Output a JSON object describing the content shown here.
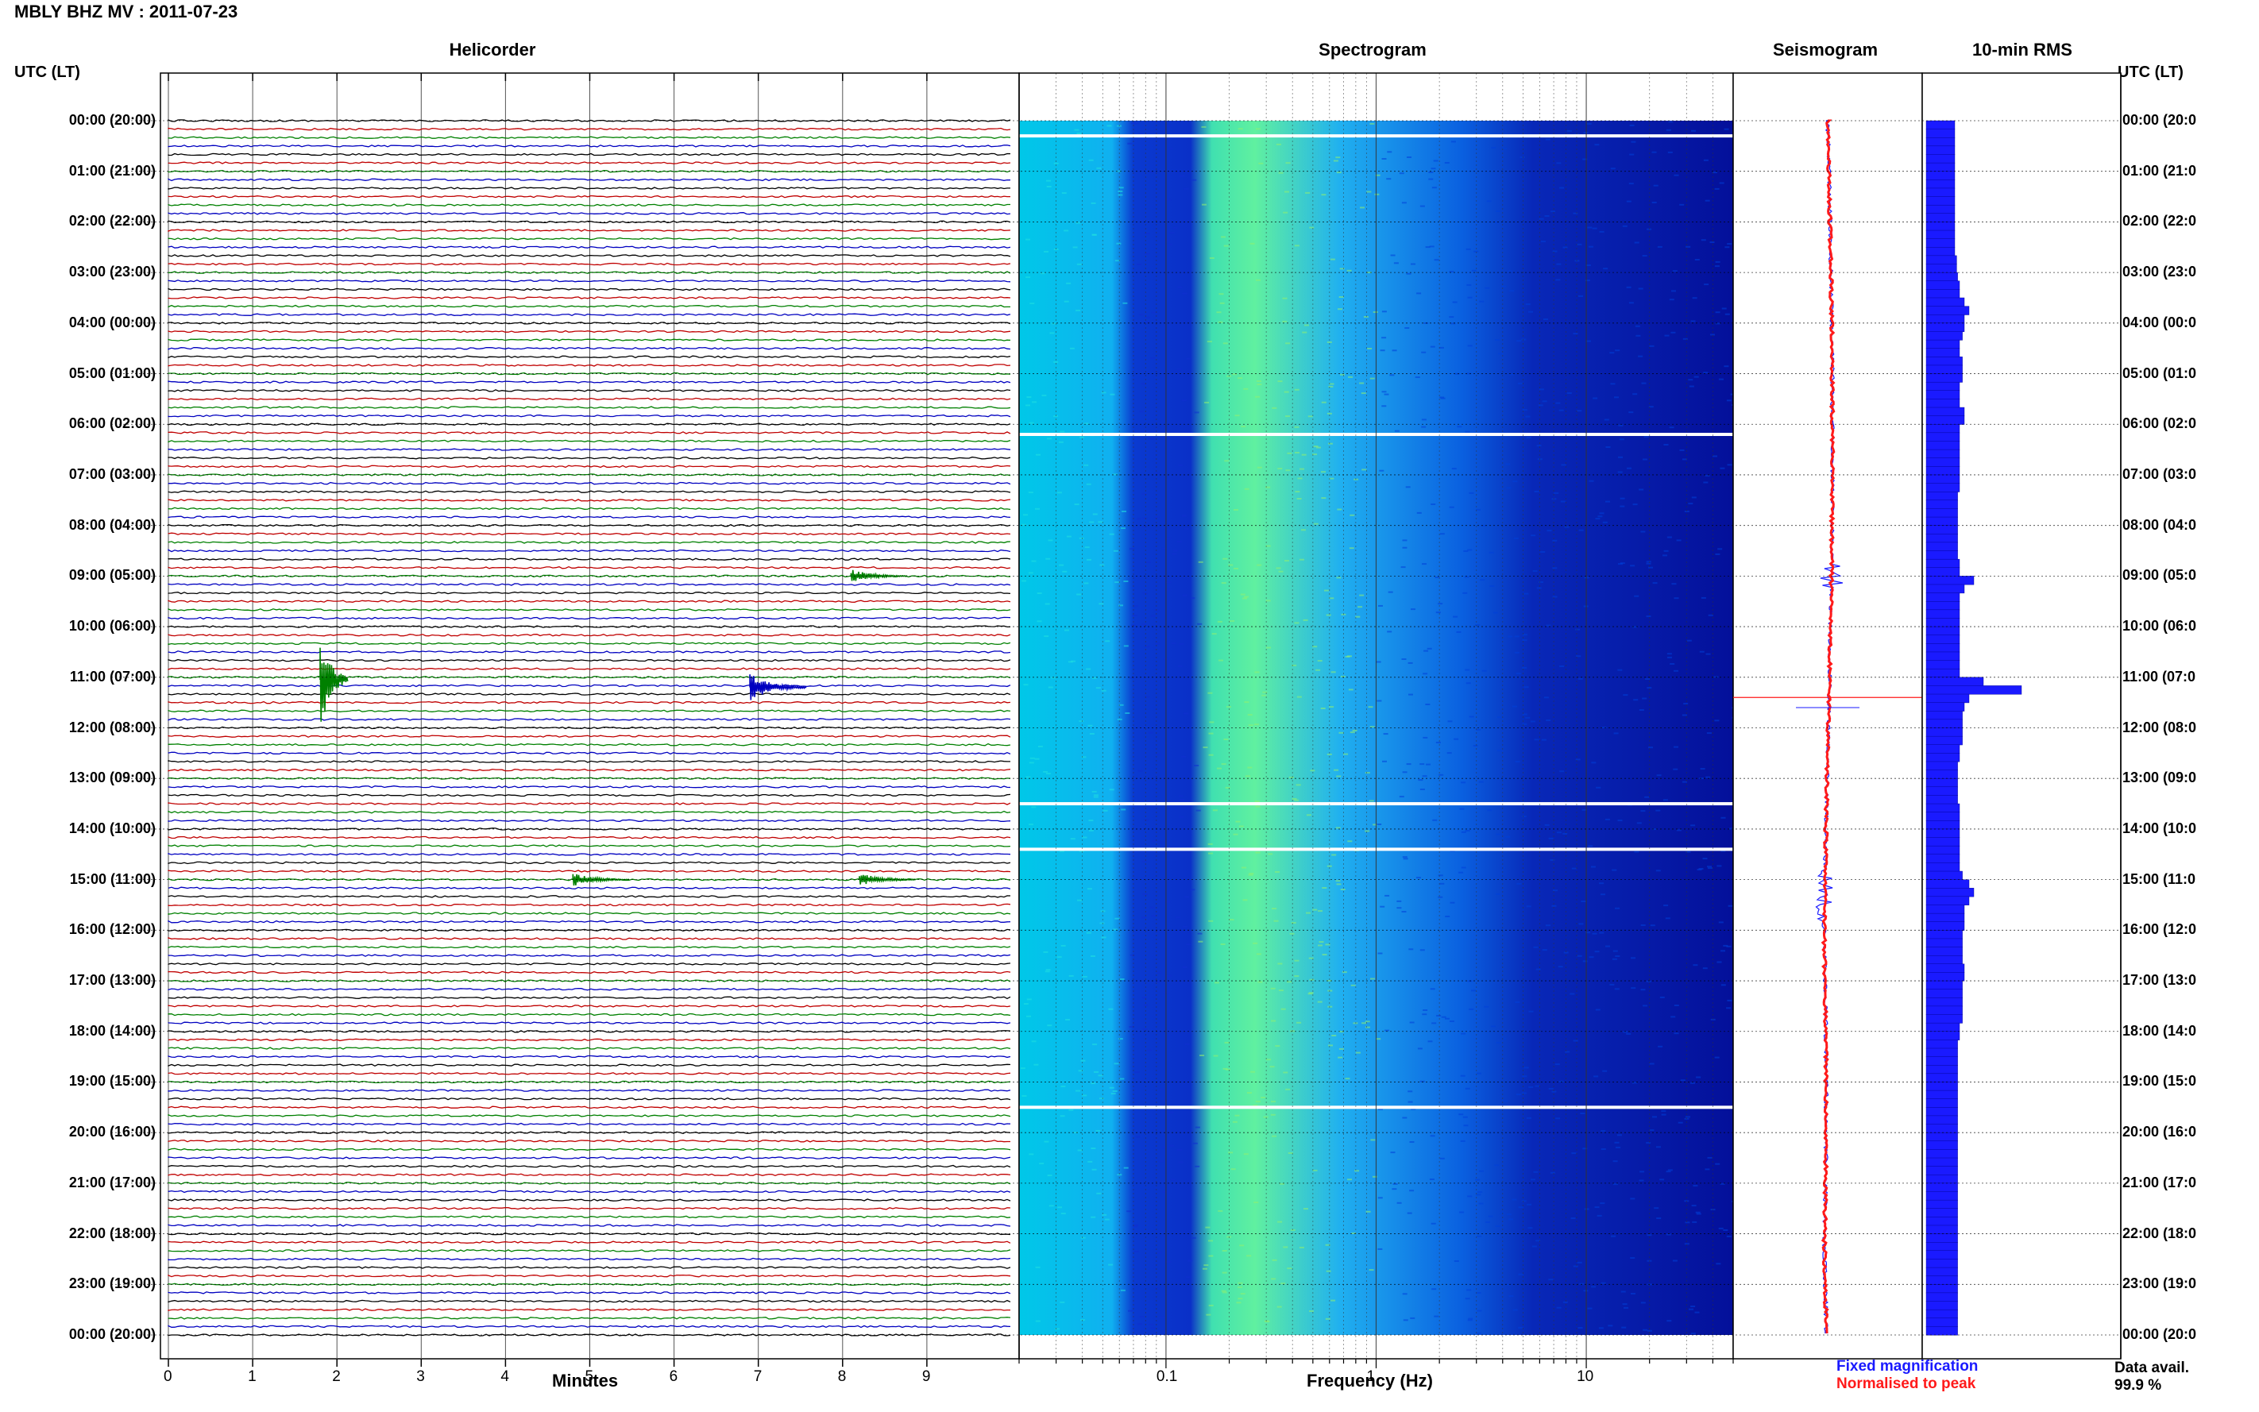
{
  "header": {
    "station_title": "MBLY BHZ MV : 2011-07-23",
    "utc_lt_label_left": "UTC (LT)",
    "utc_lt_label_right": "UTC (LT)"
  },
  "panels": {
    "helicorder": "Helicorder",
    "spectrogram": "Spectrogram",
    "seismogram": "Seismogram",
    "rms": "10-min RMS"
  },
  "time_labels": [
    "00:00 (20:00)",
    "01:00 (21:00)",
    "02:00 (22:00)",
    "03:00 (23:00)",
    "04:00 (00:00)",
    "05:00 (01:00)",
    "06:00 (02:00)",
    "07:00 (03:00)",
    "08:00 (04:00)",
    "09:00 (05:00)",
    "10:00 (06:00)",
    "11:00 (07:00)",
    "12:00 (08:00)",
    "13:00 (09:00)",
    "14:00 (10:00)",
    "15:00 (11:00)",
    "16:00 (12:00)",
    "17:00 (13:00)",
    "18:00 (14:00)",
    "19:00 (15:00)",
    "20:00 (16:00)",
    "21:00 (17:00)",
    "22:00 (18:00)",
    "23:00 (19:00)",
    "00:00 (20:00)"
  ],
  "time_labels_right": [
    "00:00 (20:0",
    "01:00 (21:0",
    "02:00 (22:0",
    "03:00 (23:0",
    "04:00 (00:0",
    "05:00 (01:0",
    "06:00 (02:0",
    "07:00 (03:0",
    "08:00 (04:0",
    "09:00 (05:0",
    "10:00 (06:0",
    "11:00 (07:0",
    "12:00 (08:0",
    "13:00 (09:0",
    "14:00 (10:0",
    "15:00 (11:0",
    "16:00 (12:0",
    "17:00 (13:0",
    "18:00 (14:0",
    "19:00 (15:0",
    "20:00 (16:0",
    "21:00 (17:0",
    "22:00 (18:0",
    "23:00 (19:0",
    "00:00 (20:0"
  ],
  "helicorder_axis": {
    "ticks": [
      "0",
      "1",
      "2",
      "3",
      "4",
      "5",
      "6",
      "7",
      "8",
      "9"
    ],
    "title": "Minutes"
  },
  "spectrogram_axis": {
    "ticks": [
      "0.1",
      "1",
      "10"
    ],
    "title": "Frequency (Hz)"
  },
  "legend": {
    "fixed": "Fixed magnification",
    "normalised": "Normalised to peak",
    "fixed_color": "#1a1aff",
    "normalised_color": "#ff1a1a"
  },
  "data_avail": {
    "label": "Data avail.",
    "value": "99.9 %"
  },
  "colors": {
    "trace_cycle": [
      "#000000",
      "#c00000",
      "#008000",
      "#0000c0"
    ],
    "rms_bar": "#1a1aff",
    "spectro_low": "#0a0aa0",
    "spectro_high": "#f0e000"
  },
  "chart_data": [
    {
      "type": "line",
      "title": "Helicorder",
      "xlabel": "Minutes",
      "xlim": [
        0,
        10
      ],
      "rows_per_hour": 6,
      "total_hours": 24,
      "events": [
        {
          "hour_fraction": 11.05,
          "minute": 1.8,
          "amplitude": "large"
        },
        {
          "hour_fraction": 11.2,
          "minute": 6.9,
          "amplitude": "medium"
        },
        {
          "hour_fraction": 9.0,
          "minute": 8.1,
          "amplitude": "small"
        },
        {
          "hour_fraction": 15.0,
          "minute": 4.8,
          "amplitude": "small"
        },
        {
          "hour_fraction": 15.0,
          "minute": 8.2,
          "amplitude": "small"
        }
      ]
    },
    {
      "type": "heatmap",
      "title": "Spectrogram",
      "xlabel": "Frequency (Hz)",
      "xscale": "log",
      "xlim": [
        0.02,
        50
      ],
      "data_gaps_utc": [
        0.3,
        6.2,
        13.5,
        14.4,
        19.5
      ]
    },
    {
      "type": "line",
      "title": "Seismogram",
      "series": [
        {
          "name": "Fixed magnification"
        },
        {
          "name": "Normalised to peak"
        }
      ]
    },
    {
      "type": "bar",
      "title": "10-min RMS",
      "categories_hours": [
        0,
        24
      ],
      "relative_values": [
        0.3,
        0.3,
        0.3,
        0.3,
        0.3,
        0.3,
        0.3,
        0.3,
        0.3,
        0.3,
        0.3,
        0.3,
        0.3,
        0.3,
        0.3,
        0.3,
        0.32,
        0.32,
        0.33,
        0.35,
        0.35,
        0.4,
        0.45,
        0.4,
        0.4,
        0.38,
        0.35,
        0.35,
        0.38,
        0.38,
        0.38,
        0.35,
        0.35,
        0.35,
        0.4,
        0.4,
        0.35,
        0.35,
        0.35,
        0.35,
        0.35,
        0.35,
        0.35,
        0.35,
        0.33,
        0.33,
        0.33,
        0.33,
        0.33,
        0.33,
        0.33,
        0.33,
        0.35,
        0.35,
        0.5,
        0.4,
        0.35,
        0.35,
        0.35,
        0.35,
        0.35,
        0.35,
        0.35,
        0.35,
        0.35,
        0.35,
        0.6,
        1.0,
        0.45,
        0.4,
        0.38,
        0.38,
        0.38,
        0.38,
        0.35,
        0.35,
        0.33,
        0.33,
        0.33,
        0.33,
        0.33,
        0.35,
        0.35,
        0.35,
        0.35,
        0.35,
        0.35,
        0.35,
        0.35,
        0.38,
        0.45,
        0.5,
        0.45,
        0.4,
        0.4,
        0.4,
        0.38,
        0.38,
        0.38,
        0.38,
        0.4,
        0.4,
        0.38,
        0.38,
        0.38,
        0.38,
        0.38,
        0.35,
        0.35,
        0.33,
        0.33,
        0.33,
        0.33,
        0.33,
        0.33,
        0.33,
        0.33,
        0.33,
        0.33,
        0.33,
        0.33,
        0.33,
        0.33,
        0.33,
        0.33,
        0.33,
        0.33,
        0.33,
        0.33,
        0.33,
        0.33,
        0.33,
        0.33,
        0.33,
        0.33,
        0.33,
        0.33,
        0.33,
        0.33,
        0.33,
        0.33,
        0.33,
        0.33,
        0.33
      ]
    }
  ]
}
